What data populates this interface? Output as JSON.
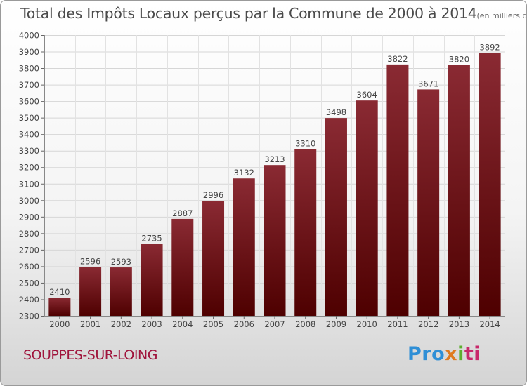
{
  "title": "Total des Impôts Locaux perçus par la Commune de 2000 à 2014",
  "title_unit": "(en milliers d'€)",
  "commune": "SOUPPES-SUR-LOING",
  "logo": {
    "part1": "Pro",
    "part2": "x",
    "part3": "i",
    "part4": "ti"
  },
  "colors": {
    "bar_top": "#8a2a33",
    "bar_bottom": "#4e0000",
    "commune": "#a0143c"
  },
  "chart_data": {
    "type": "bar",
    "categories": [
      "2000",
      "2001",
      "2002",
      "2003",
      "2004",
      "2005",
      "2006",
      "2007",
      "2008",
      "2009",
      "2010",
      "2011",
      "2012",
      "2013",
      "2014"
    ],
    "values": [
      2410,
      2596,
      2593,
      2735,
      2887,
      2996,
      3132,
      3213,
      3310,
      3498,
      3604,
      3822,
      3671,
      3820,
      3892
    ],
    "title": "Total des Impôts Locaux perçus par la Commune de 2000 à 2014",
    "xlabel": "",
    "ylabel": "",
    "ylim": [
      2300,
      4000
    ],
    "yticks": [
      2300,
      2400,
      2500,
      2600,
      2700,
      2800,
      2900,
      3000,
      3100,
      3200,
      3300,
      3400,
      3500,
      3600,
      3700,
      3800,
      3900,
      4000
    ],
    "grid": true,
    "legend": "none"
  }
}
